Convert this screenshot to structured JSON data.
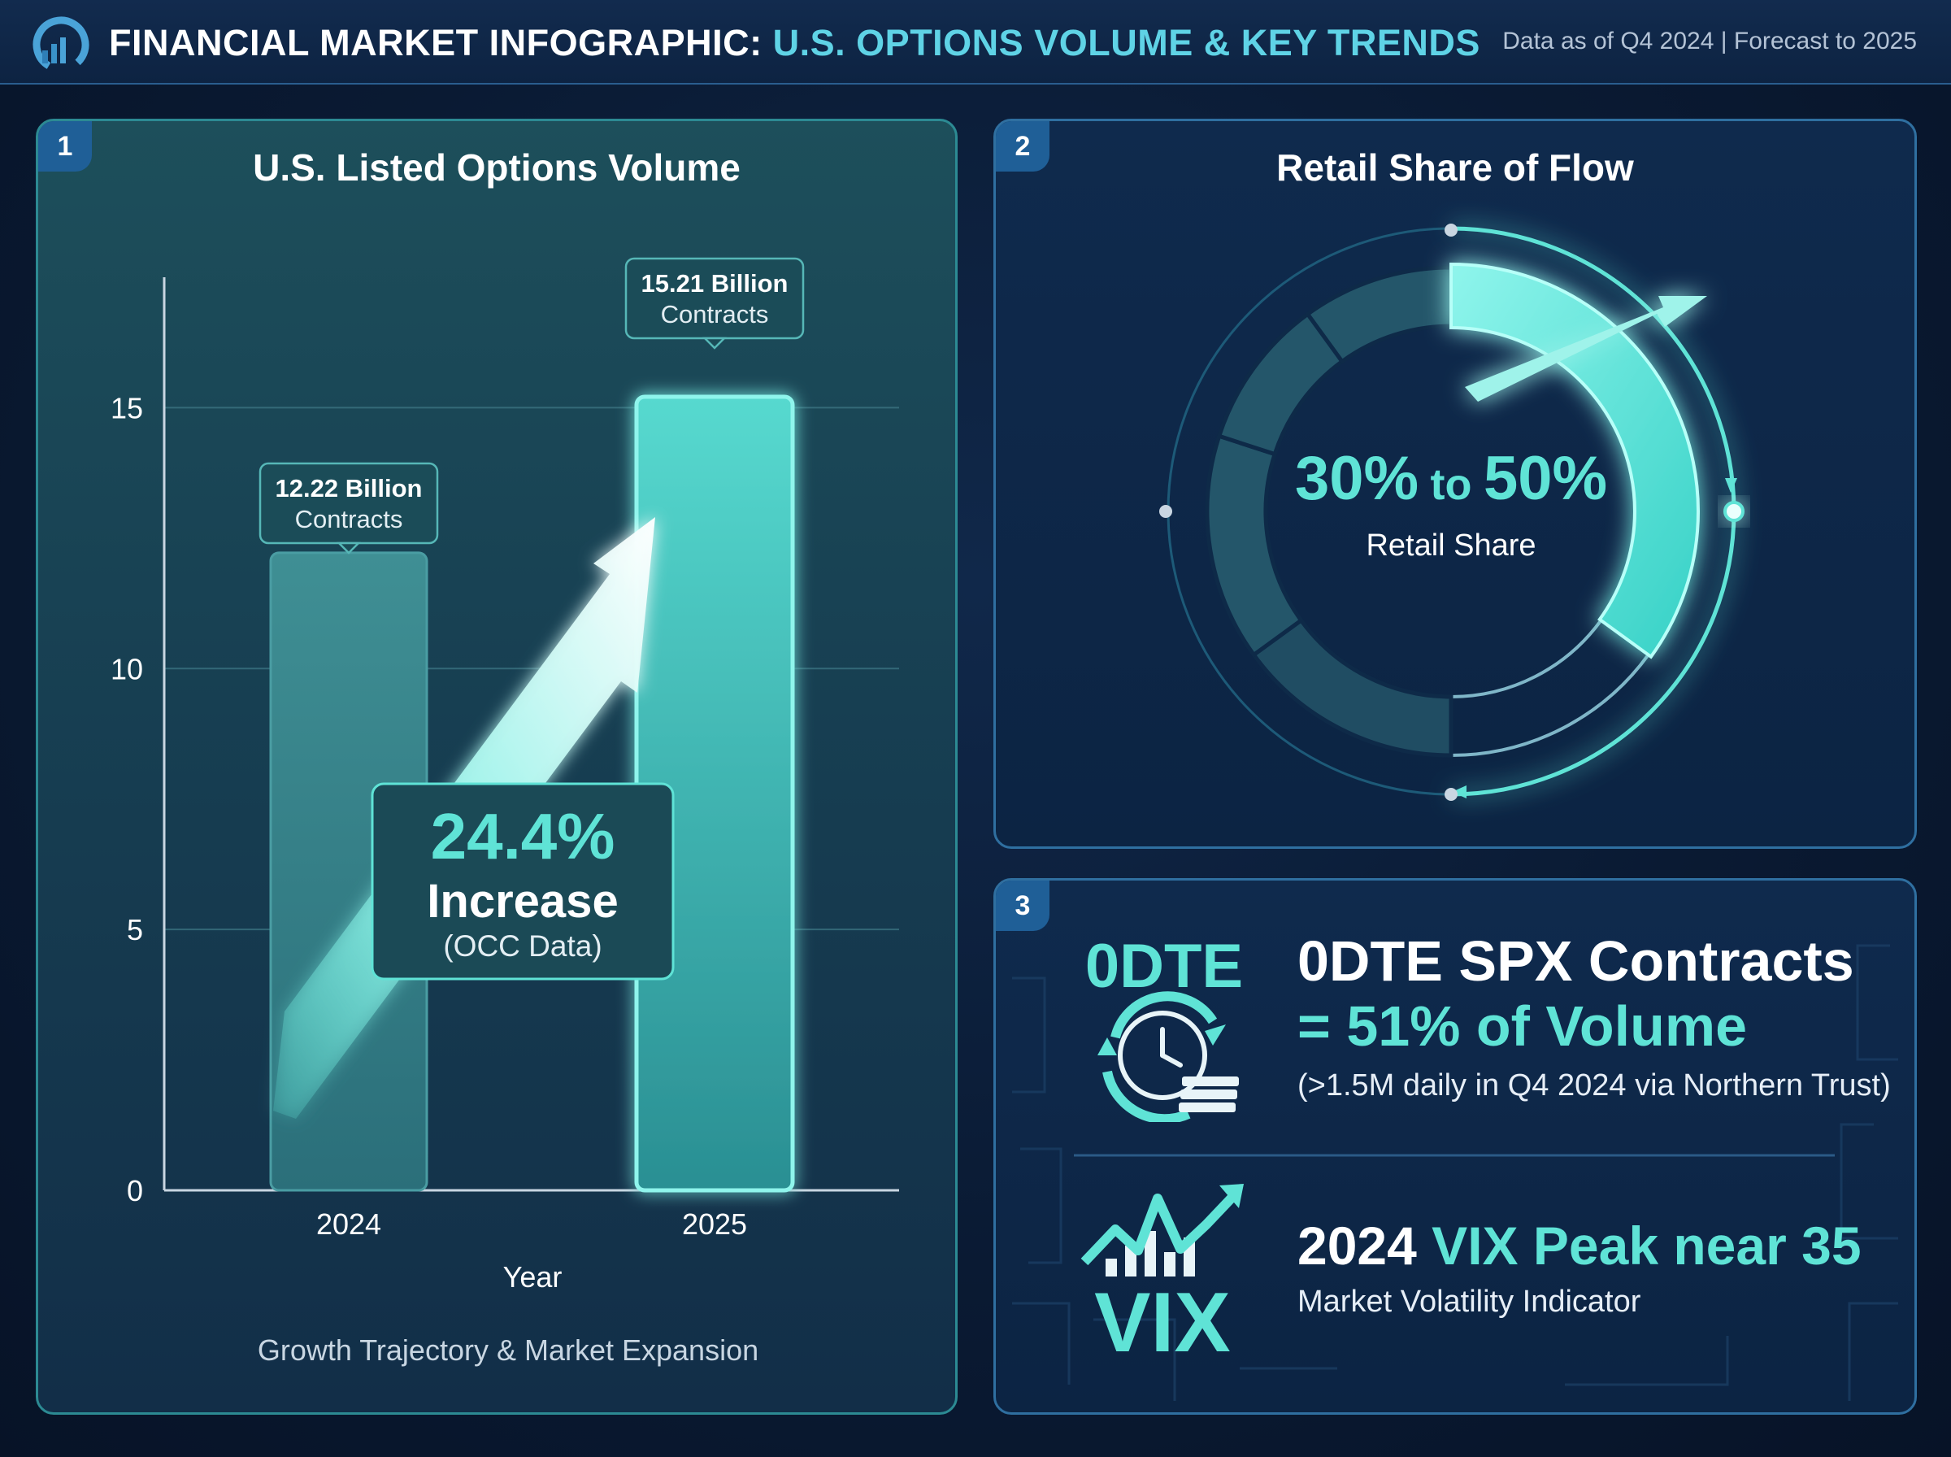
{
  "header": {
    "title_main": "FINANCIAL MARKET INFOGRAPHIC:",
    "title_accent": "U.S. OPTIONS VOLUME & KEY TRENDS",
    "as_of": "Data as of Q4 2024 | Forecast to 2025"
  },
  "panel1": {
    "number": "1",
    "title": "U.S. Listed Options Volume",
    "callout_2024_value": "12.22 Billion",
    "callout_2024_unit": "Contracts",
    "callout_2025_value": "15.21 Billion",
    "callout_2025_unit": "Contracts",
    "increase_pct": "24.4%",
    "increase_label": "Increase",
    "increase_source": "(OCC Data)",
    "xlabel": "Year",
    "caption": "Growth Trajectory & Market Expansion"
  },
  "panel2": {
    "number": "2",
    "title": "Retail Share of Flow",
    "center_value_low": "30%",
    "center_value_connector": "to",
    "center_value_high": "50%",
    "center_label": "Retail Share"
  },
  "panel3": {
    "number": "3",
    "odte_icon_text": "0DTE",
    "odte_title": "0DTE SPX Contracts",
    "odte_value": "= 51% of Volume",
    "odte_note": "(>1.5M daily in Q4 2024 via Northern Trust)",
    "vix_icon_text": "VIX",
    "vix_title_year": "2024",
    "vix_title_rest": "VIX Peak near 35",
    "vix_sub": "Market Volatility Indicator"
  },
  "colors": {
    "accent": "#5fe3d6",
    "bar_2024": "#3a8f95",
    "bar_2025": "#46c7bf",
    "panel_border": "#2f6fa0"
  },
  "chart_data": [
    {
      "type": "bar",
      "title": "U.S. Listed Options Volume",
      "categories": [
        "2024",
        "2025"
      ],
      "values": [
        12.22,
        15.21
      ],
      "xlabel": "Year",
      "ylabel": "",
      "ylim": [
        0,
        17.5
      ],
      "yticks": [
        0,
        5,
        10,
        15
      ],
      "grid": true
    },
    {
      "type": "pie",
      "title": "Retail Share of Flow",
      "range_low_pct": 30,
      "range_high_pct": 50,
      "label": "Retail Share"
    }
  ]
}
